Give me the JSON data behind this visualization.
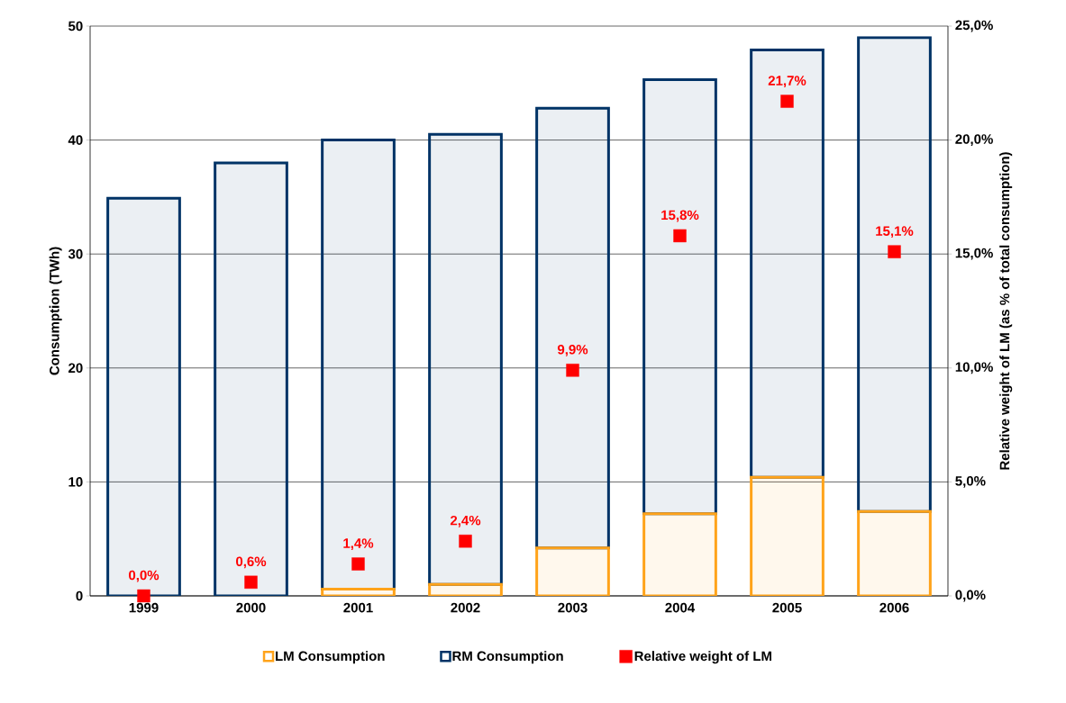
{
  "chart_data": {
    "type": "bar",
    "stacked": true,
    "categories": [
      "1999",
      "2000",
      "2001",
      "2002",
      "2003",
      "2004",
      "2005",
      "2006"
    ],
    "ylabel": "Consumption (TWh)",
    "y2label": "Relative weight of LM (as % of total consumption)",
    "ylim": [
      0,
      50
    ],
    "yticks": [
      0,
      10,
      20,
      30,
      40,
      50
    ],
    "y2lim": [
      0,
      25
    ],
    "y2ticks": [
      {
        "value": 0,
        "label": "0,0%"
      },
      {
        "value": 5,
        "label": "5,0%"
      },
      {
        "value": 10,
        "label": "10,0%"
      },
      {
        "value": 15,
        "label": "15,0%"
      },
      {
        "value": 20,
        "label": "20,0%"
      },
      {
        "value": 25,
        "label": "25,0%"
      }
    ],
    "grid": "y",
    "legend": "bottom",
    "series": [
      {
        "name": "LM Consumption",
        "color": "#ffa31a",
        "values": [
          0,
          null,
          0.6,
          1.0,
          4.2,
          7.2,
          10.4,
          7.4
        ]
      },
      {
        "name": "RM Consumption",
        "color": "#003366",
        "values": [
          34.9,
          38.0,
          39.4,
          39.5,
          38.6,
          38.1,
          37.5,
          41.6
        ]
      },
      {
        "name": "Relative weight of LM",
        "type": "scatter",
        "axis": "y2",
        "marker": "square",
        "color": "#ff0000",
        "values": [
          0,
          0.6,
          1.4,
          2.4,
          9.9,
          15.8,
          21.7,
          15.1
        ],
        "value_labels": [
          "0,0%",
          "0,6%",
          "1,4%",
          "2,4%",
          "9,9%",
          "15,8%",
          "21,7%",
          "15,1%"
        ]
      }
    ]
  }
}
